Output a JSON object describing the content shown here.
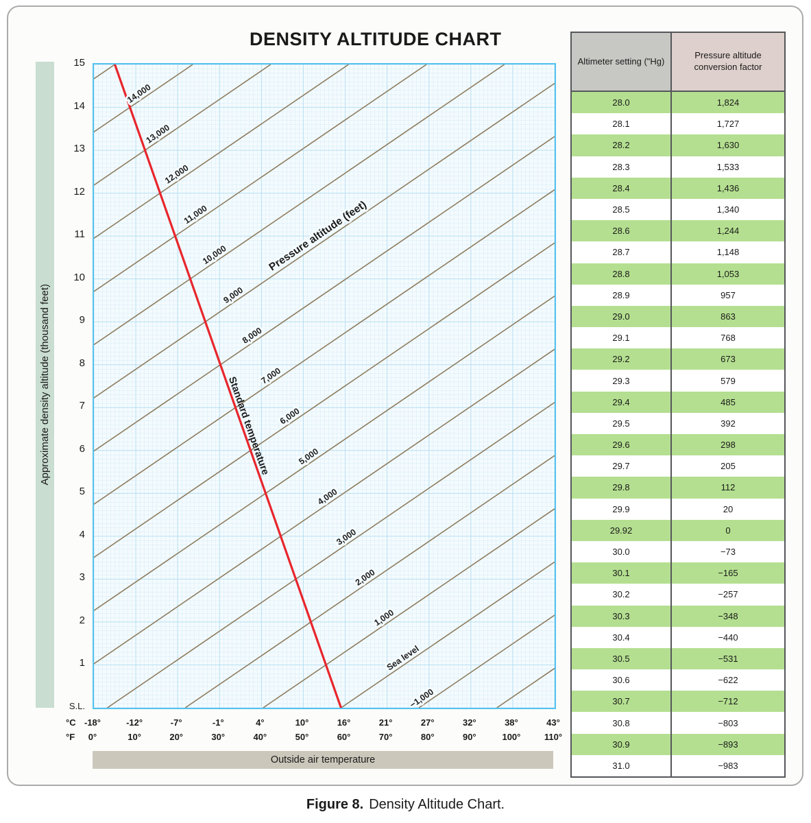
{
  "figure": {
    "caption_label": "Figure 8.",
    "caption_text": "Density Altitude Chart."
  },
  "chart_data": {
    "type": "line",
    "title": "DENSITY ALTITUDE CHART",
    "xlabel": "Outside air temperature",
    "ylabel": "Approximate density altitude (thousand feet)",
    "x_axis": {
      "unit_labels": [
        "°C",
        "°F"
      ],
      "ticks_c": [
        "-18°",
        "-12°",
        "-7°",
        "-1°",
        "4°",
        "10°",
        "16°",
        "21°",
        "27°",
        "32°",
        "38°",
        "43°"
      ],
      "ticks_f": [
        "0°",
        "10°",
        "20°",
        "30°",
        "40°",
        "50°",
        "60°",
        "70°",
        "80°",
        "90°",
        "100°",
        "110°"
      ],
      "range_f": [
        0,
        110
      ]
    },
    "y_axis": {
      "tick_labels": [
        "15",
        "14",
        "13",
        "12",
        "11",
        "10",
        "9",
        "8",
        "7",
        "6",
        "5",
        "4",
        "3",
        "2",
        "1",
        "S.L."
      ],
      "range_ft": [
        0,
        15000
      ]
    },
    "grid": {
      "minor_step_f": 1,
      "minor_step_ft": 100,
      "major_step_f": 10,
      "major_step_ft": 1000
    },
    "diagonal_axis_label": "Pressure altitude (feet)",
    "standard_temperature_label": "Standard temperature",
    "pressure_altitude_lines": [
      {
        "value_ft": 15000,
        "label": ""
      },
      {
        "value_ft": 14000,
        "label": "14,000"
      },
      {
        "value_ft": 13000,
        "label": "13,000"
      },
      {
        "value_ft": 12000,
        "label": "12,000"
      },
      {
        "value_ft": 11000,
        "label": "11,000"
      },
      {
        "value_ft": 10000,
        "label": "10,000"
      },
      {
        "value_ft": 9000,
        "label": "9,000"
      },
      {
        "value_ft": 8000,
        "label": "8,000"
      },
      {
        "value_ft": 7000,
        "label": "7,000"
      },
      {
        "value_ft": 6000,
        "label": "6,000"
      },
      {
        "value_ft": 5000,
        "label": "5,000"
      },
      {
        "value_ft": 4000,
        "label": "4,000"
      },
      {
        "value_ft": 3000,
        "label": "3,000"
      },
      {
        "value_ft": 2000,
        "label": "2,000"
      },
      {
        "value_ft": 1000,
        "label": "1,000"
      },
      {
        "value_ft": 0,
        "label": "Sea level"
      },
      {
        "value_ft": -1000,
        "label": "−1,000"
      },
      {
        "value_ft": -2000,
        "label": ""
      }
    ],
    "model": {
      "isa_sea_level_temp_c": 15,
      "lapse_rate_c_per_1000ft": 2,
      "density_altitude_ft_per_deg_c": 120
    }
  },
  "table": {
    "headers": [
      "Altimeter setting (\"Hg)",
      "Pressure altitude conversion factor"
    ],
    "rows": [
      [
        "28.0",
        "1,824"
      ],
      [
        "28.1",
        "1,727"
      ],
      [
        "28.2",
        "1,630"
      ],
      [
        "28.3",
        "1,533"
      ],
      [
        "28.4",
        "1,436"
      ],
      [
        "28.5",
        "1,340"
      ],
      [
        "28.6",
        "1,244"
      ],
      [
        "28.7",
        "1,148"
      ],
      [
        "28.8",
        "1,053"
      ],
      [
        "28.9",
        "957"
      ],
      [
        "29.0",
        "863"
      ],
      [
        "29.1",
        "768"
      ],
      [
        "29.2",
        "673"
      ],
      [
        "29.3",
        "579"
      ],
      [
        "29.4",
        "485"
      ],
      [
        "29.5",
        "392"
      ],
      [
        "29.6",
        "298"
      ],
      [
        "29.7",
        "205"
      ],
      [
        "29.8",
        "112"
      ],
      [
        "29.9",
        "20"
      ],
      [
        "29.92",
        "0"
      ],
      [
        "30.0",
        "−73"
      ],
      [
        "30.1",
        "−165"
      ],
      [
        "30.2",
        "−257"
      ],
      [
        "30.3",
        "−348"
      ],
      [
        "30.4",
        "−440"
      ],
      [
        "30.5",
        "−531"
      ],
      [
        "30.6",
        "−622"
      ],
      [
        "30.7",
        "−712"
      ],
      [
        "30.8",
        "−803"
      ],
      [
        "30.9",
        "−893"
      ],
      [
        "31.0",
        "−983"
      ]
    ]
  },
  "colors": {
    "plot_bg": "#f4fbfe",
    "plot_border": "#54c2f0",
    "grid_minor": "#d3eaf6",
    "grid_major": "#b9e0f2",
    "diagonal_line": "#8e7d60",
    "standard_temp_line": "#e8262d",
    "row_green": "#b4df90",
    "header_gray": "#c7c8c4",
    "header_pink": "#ded0cc",
    "table_border": "#55565a",
    "y_bar": "#c9ddd1",
    "x_bar": "#cbc7bb",
    "box_bg": "#fcfcfa",
    "box_border": "#aaaaaa"
  }
}
